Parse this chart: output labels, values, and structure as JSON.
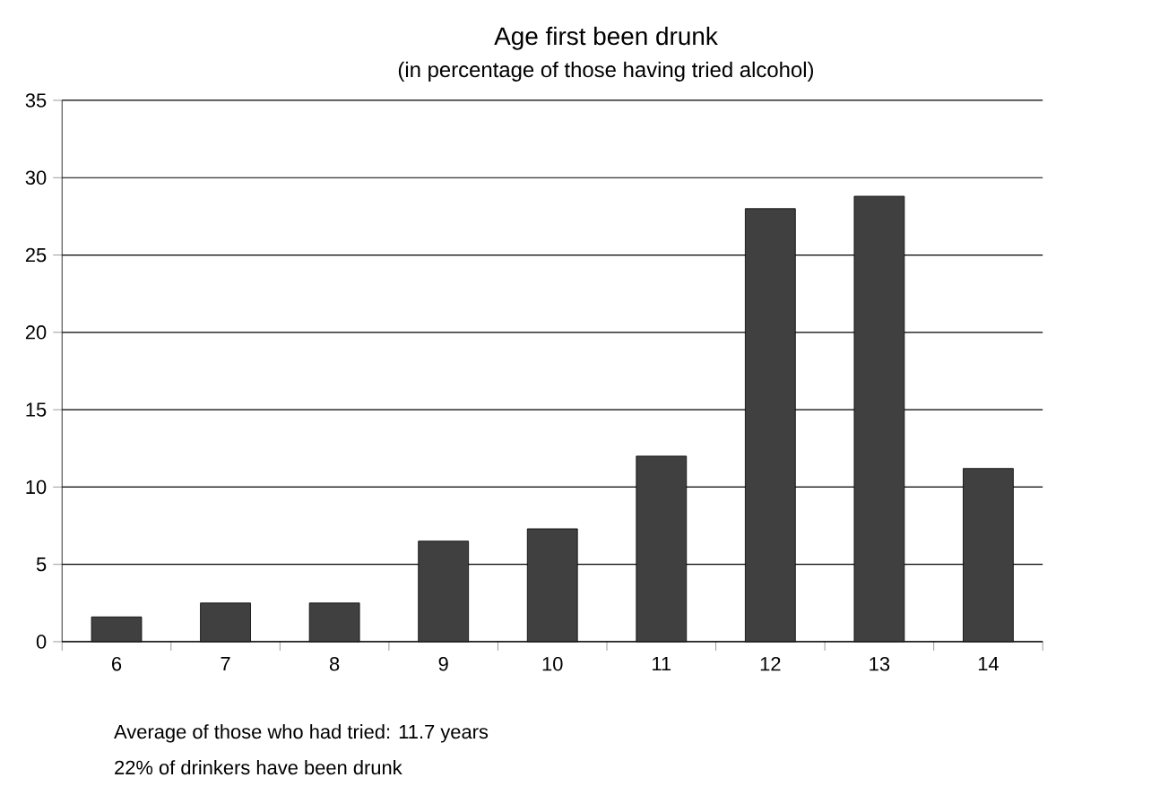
{
  "chart_data": {
    "type": "bar",
    "title": "Age first been drunk",
    "subtitle": "(in percentage of those having tried alcohol)",
    "categories": [
      "6",
      "7",
      "8",
      "9",
      "10",
      "11",
      "12",
      "13",
      "14"
    ],
    "values": [
      1.6,
      2.5,
      2.5,
      6.5,
      7.3,
      12,
      28,
      28.8,
      11.2
    ],
    "color": "#404040",
    "ylim": [
      0,
      35
    ],
    "yticks": [
      0,
      5,
      10,
      15,
      20,
      25,
      30,
      35
    ],
    "grid": "y",
    "annotations": [
      "Average of those who had tried: 11.7 years",
      "22% of drinkers have been drunk"
    ]
  }
}
